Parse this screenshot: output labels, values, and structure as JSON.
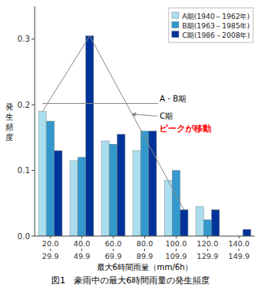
{
  "chart_data": {
    "type": "bar",
    "title": "図1　豪雨中の最大6時間雨量の発生頻度",
    "xlabel": "最大6時間雨量（mm/6h）",
    "ylabel": "発生頻度",
    "categories": [
      "20.0",
      "40.0",
      "60.0",
      "80.0",
      "100.0",
      "120.0",
      "140.0"
    ],
    "x2ticks": [
      29.9,
      49.9,
      69.9,
      89.9,
      109.9,
      129.9,
      149.9
    ],
    "series": [
      {
        "name": "A期(1940～1962年)",
        "color": "#aaddee",
        "values": [
          0.19,
          0.115,
          0.145,
          0.13,
          0.085,
          0.045,
          0.0
        ]
      },
      {
        "name": "B期(1963～1985年)",
        "color": "#3399cc",
        "values": [
          0.175,
          0.12,
          0.14,
          0.16,
          0.1,
          0.025,
          0.0
        ]
      },
      {
        "name": "C期(1986～2008年)",
        "color": "#003399",
        "values": [
          0.13,
          0.305,
          0.155,
          0.16,
          0.04,
          0.04,
          0.01
        ]
      }
    ],
    "ylim": [
      0,
      0.35
    ],
    "yticks": [
      {
        "value": 0,
        "label": "0.0"
      },
      0.1,
      0.2,
      0.3
    ],
    "grid": false,
    "legend": "upper right",
    "annotations": [
      {
        "text": "A・B期"
      },
      {
        "text": "C期"
      },
      {
        "text": "ピークが移動",
        "color": "red"
      }
    ]
  }
}
